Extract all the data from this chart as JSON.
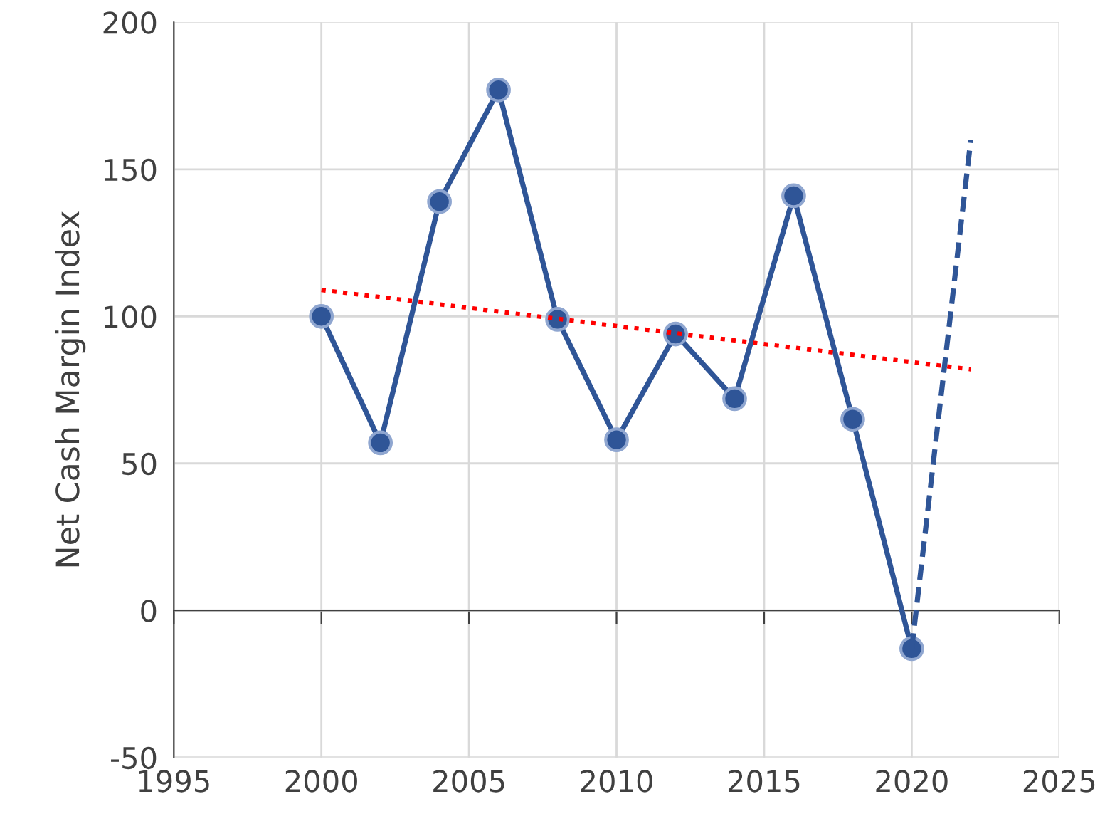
{
  "chart_data": {
    "type": "line",
    "ylabel": "Net Cash Margin Index",
    "xlim": [
      1995,
      2025
    ],
    "xticks": [
      1995,
      2000,
      2005,
      2010,
      2015,
      2020,
      2025
    ],
    "ylim": [
      -50,
      200
    ],
    "yticks": [
      -50,
      0,
      50,
      100,
      150,
      200
    ],
    "grid": true,
    "series": [
      {
        "x": [
          2000,
          2002,
          2004,
          2006,
          2008,
          2010,
          2012,
          2014,
          2016,
          2018,
          2020
        ],
        "values": [
          100,
          57,
          139,
          177,
          99,
          58,
          94,
          72,
          141,
          65,
          -13
        ],
        "color": "#2f5597",
        "marker": "circle",
        "line_style": "solid"
      },
      {
        "x": [
          2020,
          2022
        ],
        "values": [
          -13,
          160
        ],
        "color": "#2f5597",
        "marker": "none",
        "line_style": "dashed"
      },
      {
        "x": [
          2000,
          2022
        ],
        "values": [
          109,
          82
        ],
        "color": "#ff0000",
        "marker": "none",
        "line_style": "dotted"
      }
    ]
  }
}
